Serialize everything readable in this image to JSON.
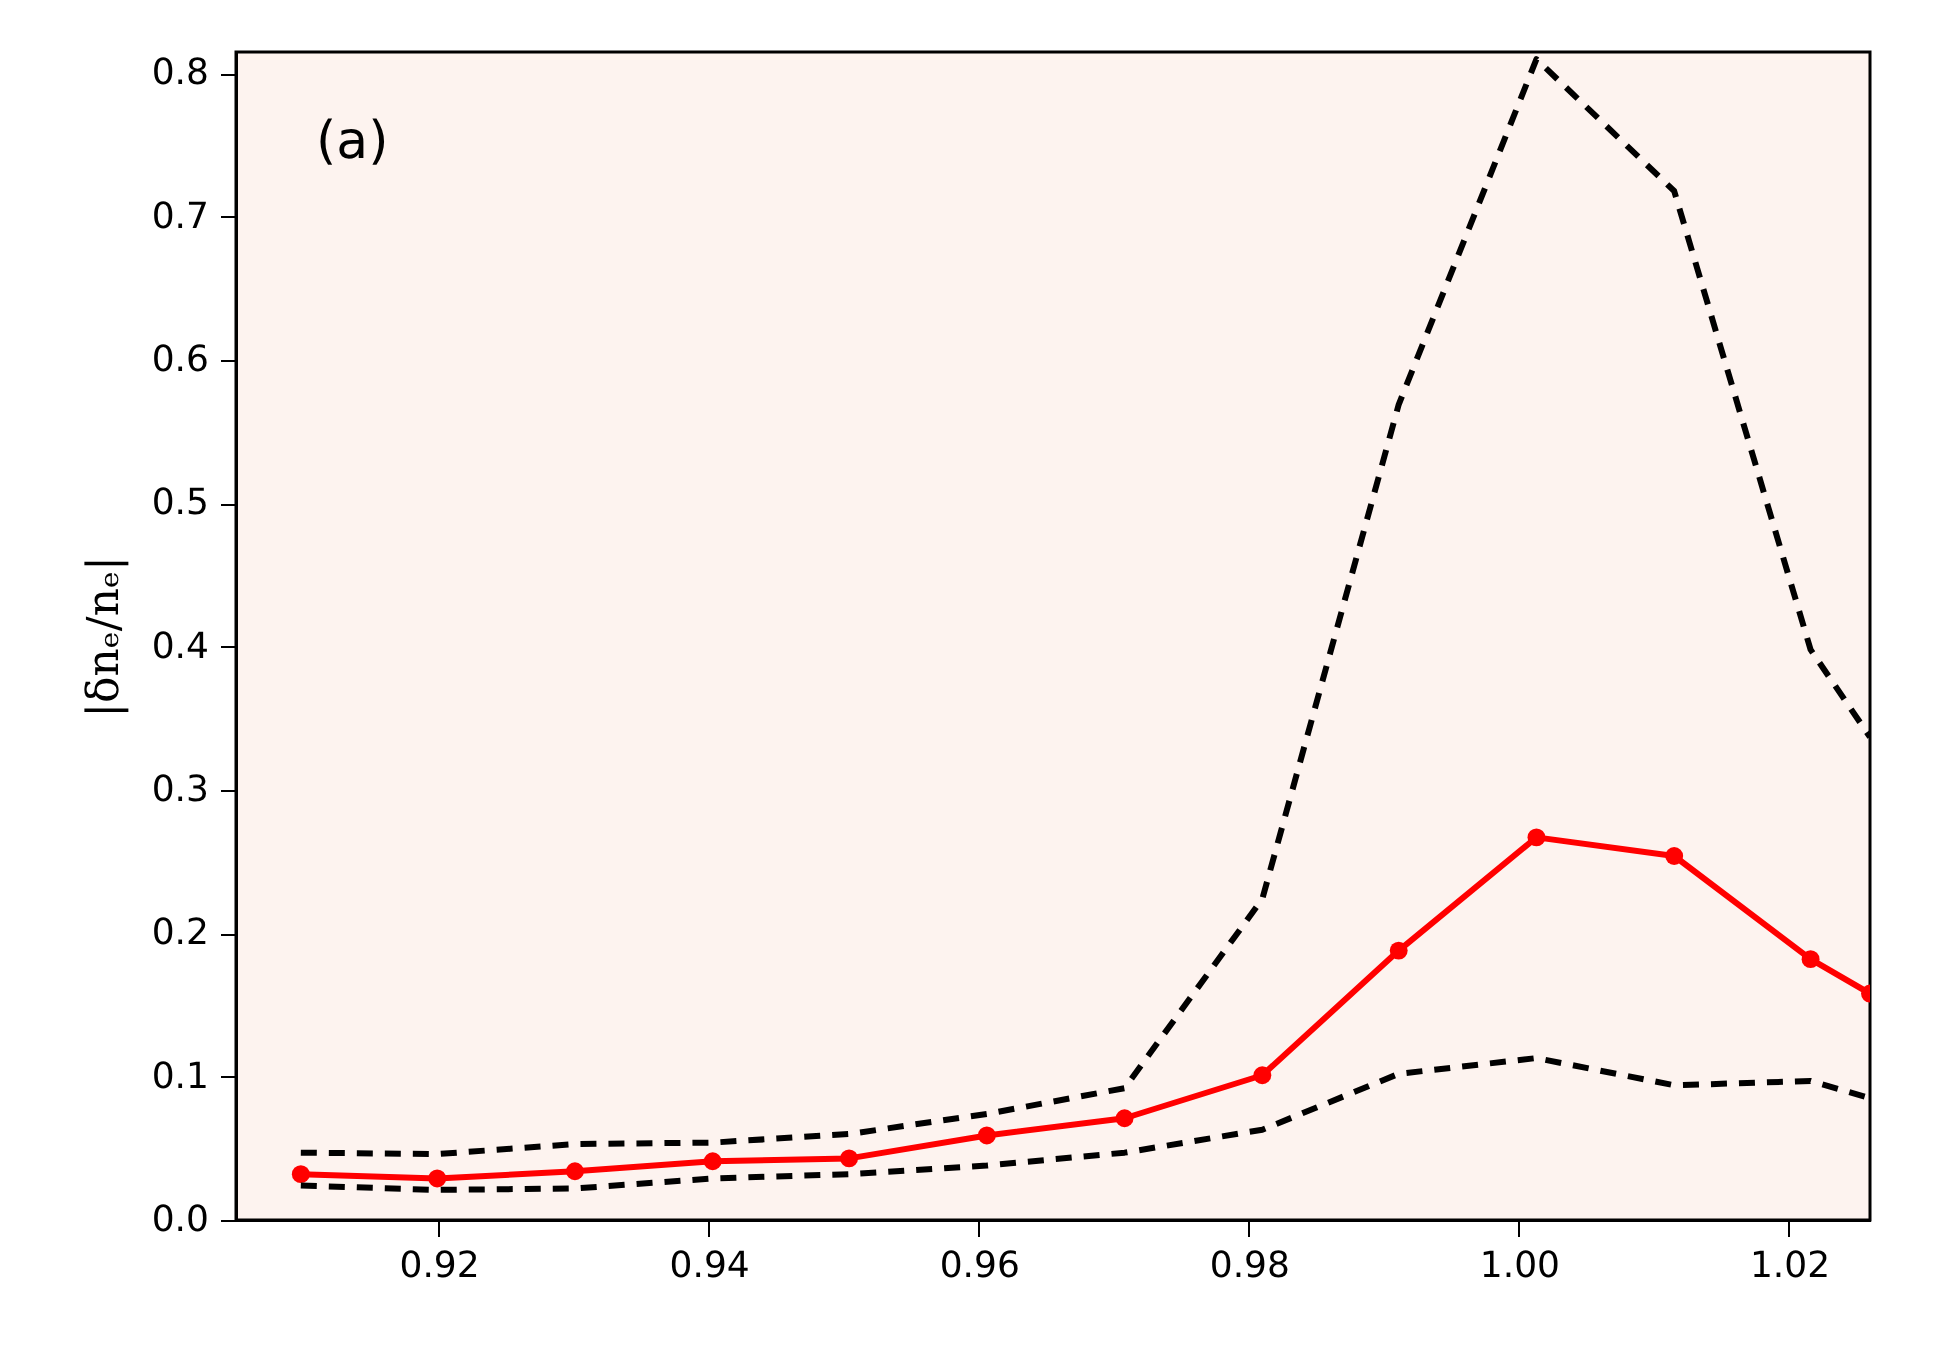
{
  "chart_data": {
    "type": "line",
    "ylabel": "|δnₑ/nₑ|",
    "annotations": [
      "(a)"
    ],
    "xlim": [
      0.905,
      1.026
    ],
    "ylim": [
      0,
      0.815
    ],
    "xticks": [
      0.92,
      0.94,
      0.96,
      0.98,
      {
        "value": 1,
        "label": "1.00"
      },
      1.02
    ],
    "yticks": [
      {
        "value": 0,
        "label": "0.0"
      },
      0.1,
      0.2,
      0.3,
      0.4,
      0.5,
      0.6,
      0.7,
      0.8
    ],
    "grid": false,
    "series": [
      {
        "color": "#ff0000",
        "marker": "circle",
        "line_style": "solid",
        "x": [
          0.9098,
          0.9199,
          0.9301,
          0.9403,
          0.9504,
          0.9606,
          0.9708,
          0.981,
          0.9911,
          1.0013,
          1.0115,
          1.0216,
          1.026
        ],
        "values": [
          0.032,
          0.029,
          0.034,
          0.041,
          0.043,
          0.059,
          0.071,
          0.101,
          0.188,
          0.267,
          0.254,
          0.182,
          0.158
        ]
      },
      {
        "color": "#000000",
        "marker": "none",
        "line_style": "dashed",
        "x": [
          0.9098,
          0.9199,
          0.9301,
          0.9403,
          0.9504,
          0.9606,
          0.9708,
          0.981,
          0.9911,
          1.0013,
          1.0115,
          1.0216,
          1.026
        ],
        "values": [
          0.047,
          0.046,
          0.053,
          0.054,
          0.06,
          0.074,
          0.092,
          0.224,
          0.569,
          0.81,
          0.718,
          0.398,
          0.337
        ]
      },
      {
        "color": "#000000",
        "marker": "none",
        "line_style": "dashed",
        "x": [
          0.9098,
          0.9199,
          0.9301,
          0.9403,
          0.9504,
          0.9606,
          0.9708,
          0.981,
          0.9911,
          1.0013,
          1.0115,
          1.0216,
          1.026
        ],
        "values": [
          0.024,
          0.021,
          0.022,
          0.029,
          0.032,
          0.038,
          0.047,
          0.063,
          0.102,
          0.113,
          0.094,
          0.097,
          0.085
        ]
      }
    ]
  }
}
